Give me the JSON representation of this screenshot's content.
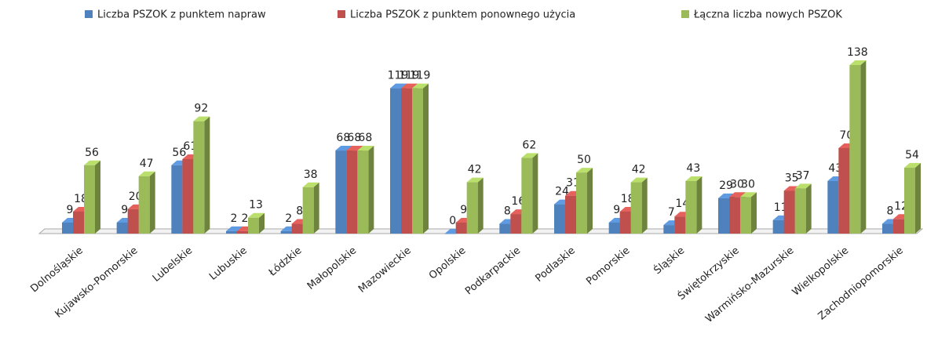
{
  "chart_data": {
    "type": "bar3d",
    "categories": [
      "Dolnośląskie",
      "Kujawsko-Pomorskie",
      "Lubelskie",
      "Lubuskie",
      "Łódzkie",
      "Małopolskie",
      "Mazowieckie",
      "Opolskie",
      "Podkarpackie",
      "Podlaskie",
      "Pomorskie",
      "Śląskie",
      "Świętokrzyskie",
      "Warmińsko-Mazurskie",
      "Wielkopolskie",
      "Zachodniopomorskie"
    ],
    "series": [
      {
        "name": "Liczba PSZOK z punktem napraw",
        "color": "#4f81bd",
        "values": [
          9,
          9,
          56,
          2,
          2,
          68,
          119,
          0,
          8,
          24,
          9,
          7,
          29,
          11,
          43,
          8
        ]
      },
      {
        "name": "Liczba PSZOK z punktem ponownego użycia",
        "color": "#c0504d",
        "values": [
          18,
          20,
          61,
          2,
          8,
          68,
          119,
          9,
          16,
          31,
          18,
          14,
          30,
          35,
          70,
          12
        ]
      },
      {
        "name": "Łączna liczba nowych PSZOK",
        "color": "#9bbb59",
        "values": [
          56,
          47,
          92,
          13,
          38,
          68,
          119,
          42,
          62,
          50,
          42,
          43,
          30,
          37,
          138,
          54
        ]
      }
    ],
    "legend": "top"
  }
}
